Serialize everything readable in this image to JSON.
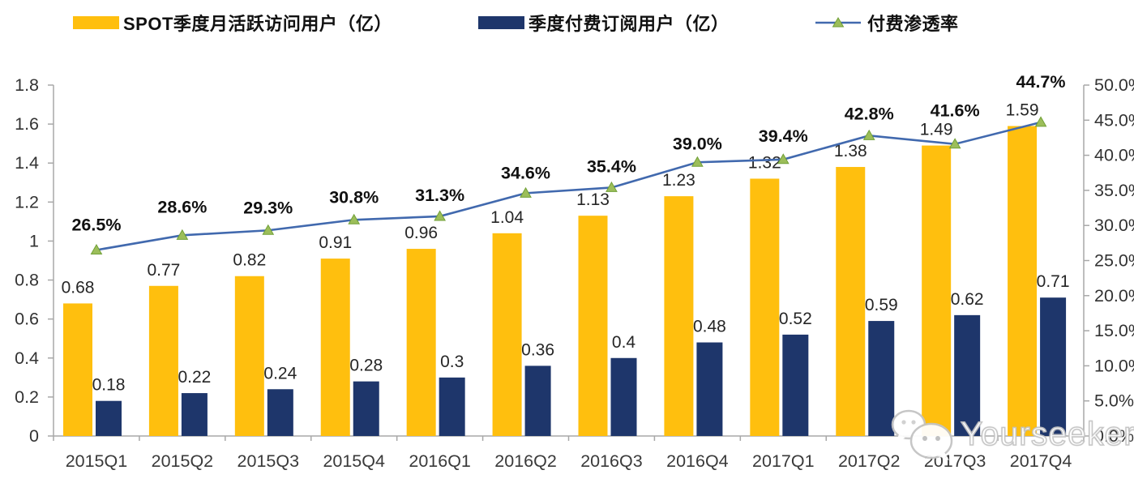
{
  "watermark": {
    "text": "Yourseeker",
    "icon": "wechat-chat-bubbles-icon"
  },
  "chart_data": {
    "type": "bar",
    "subtype": "bar-line-combo-dual-axis",
    "title": "",
    "categories": [
      "2015Q1",
      "2015Q2",
      "2015Q3",
      "2015Q4",
      "2016Q1",
      "2016Q2",
      "2016Q3",
      "2016Q4",
      "2017Q1",
      "2017Q2",
      "2017Q3",
      "2017Q4"
    ],
    "series": [
      {
        "name": "SPOT季度月活跃访问用户（亿）",
        "type": "bar",
        "y_axis": "left",
        "color": "#FFBF0E",
        "values": [
          0.68,
          0.77,
          0.82,
          0.91,
          0.96,
          1.04,
          1.13,
          1.23,
          1.32,
          1.38,
          1.49,
          1.59
        ],
        "labels": [
          "0.68",
          "0.77",
          "0.82",
          "0.91",
          "0.96",
          "1.04",
          "1.13",
          "1.23",
          "1.32",
          "1.38",
          "1.49",
          "1.59"
        ]
      },
      {
        "name": "季度付费订阅用户（亿）",
        "type": "bar",
        "y_axis": "left",
        "color": "#1E366B",
        "values": [
          0.18,
          0.22,
          0.24,
          0.28,
          0.3,
          0.36,
          0.4,
          0.48,
          0.52,
          0.59,
          0.62,
          0.71
        ],
        "labels": [
          "0.18",
          "0.22",
          "0.24",
          "0.28",
          "0.3",
          "0.36",
          "0.4",
          "0.48",
          "0.52",
          "0.59",
          "0.62",
          "0.71"
        ]
      },
      {
        "name": "付费渗透率",
        "type": "line",
        "y_axis": "right",
        "color": "#4169AE",
        "marker": "triangle",
        "marker_color": "#9CBE5A",
        "marker_stroke": "#71A037",
        "values": [
          26.5,
          28.6,
          29.3,
          30.8,
          31.3,
          34.6,
          35.4,
          39.0,
          39.4,
          42.8,
          41.6,
          44.7
        ],
        "labels": [
          "26.5%",
          "28.6%",
          "29.3%",
          "30.8%",
          "31.3%",
          "34.6%",
          "35.4%",
          "39.0%",
          "39.4%",
          "42.8%",
          "41.6%",
          "44.7%"
        ]
      }
    ],
    "left_axis": {
      "min": 0,
      "max": 1.8,
      "tick_labels": [
        "0",
        "0.2",
        "0.4",
        "0.6",
        "0.8",
        "1",
        "1.2",
        "1.4",
        "1.6",
        "1.8"
      ]
    },
    "right_axis": {
      "min": 0,
      "max": 50,
      "tick_labels": [
        "0.0%",
        "5.0%",
        "10.0%",
        "15.0%",
        "20.0%",
        "25.0%",
        "30.0%",
        "35.0%",
        "40.0%",
        "45.0%",
        "50.0%"
      ]
    },
    "legend_position": "top",
    "grid": false
  }
}
